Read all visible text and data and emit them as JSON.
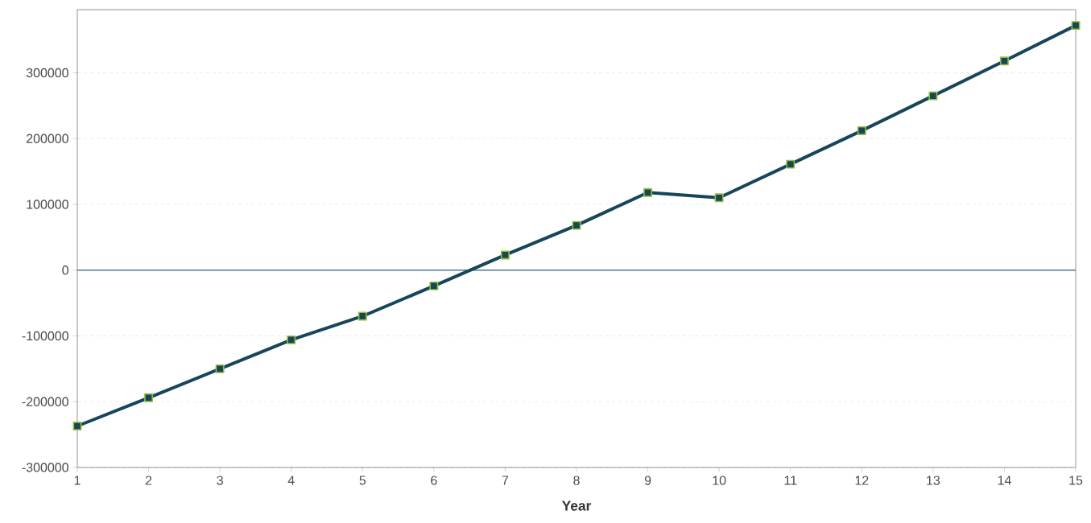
{
  "chart_data": {
    "type": "line",
    "xlabel": "Year",
    "x": [
      1,
      2,
      3,
      4,
      5,
      6,
      7,
      8,
      9,
      10,
      11,
      12,
      13,
      14,
      15
    ],
    "series": [
      {
        "color": "#17465a",
        "values": [
          -237000,
          -194000,
          -150000,
          -106000,
          -70000,
          -24000,
          23000,
          68000,
          118000,
          110000,
          161000,
          212000,
          265000,
          318000,
          372000
        ]
      }
    ],
    "xlim": [
      1,
      15
    ],
    "xticks": [
      1,
      2,
      3,
      4,
      5,
      6,
      7,
      8,
      9,
      10,
      11,
      12,
      13,
      14,
      15
    ],
    "ylim": [
      -300000,
      396000
    ],
    "yticks": [
      -300000,
      -200000,
      -100000,
      0,
      100000,
      200000,
      300000
    ],
    "ref_lines": [
      {
        "axis": "y",
        "value": 0,
        "color": "#4a7a8a"
      }
    ],
    "grid": "y",
    "marker": "square",
    "line_style": "solid"
  }
}
